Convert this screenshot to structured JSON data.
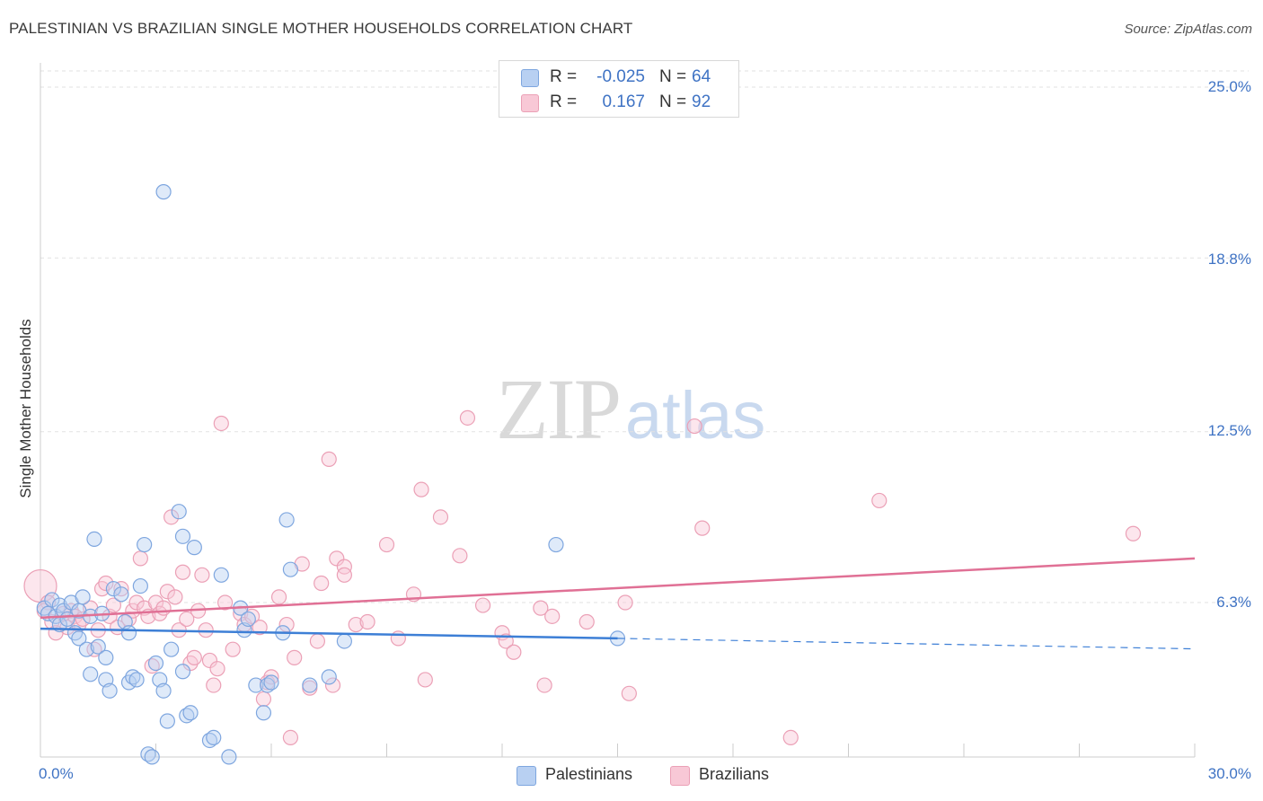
{
  "chart_data": {
    "type": "scatter",
    "title": "PALESTINIAN VS BRAZILIAN SINGLE MOTHER HOUSEHOLDS CORRELATION CHART",
    "source": "Source: ZipAtlas.com",
    "xlabel": "",
    "ylabel": "Single Mother Households",
    "xlim": [
      0,
      30
    ],
    "ylim": [
      0,
      26
    ],
    "x_tick_labels": [
      "0.0%",
      "30.0%"
    ],
    "y_ticks": [
      {
        "value": 25.0,
        "label": "25.0%"
      },
      {
        "value": 18.8,
        "label": "18.8%"
      },
      {
        "value": 12.5,
        "label": "12.5%"
      },
      {
        "value": 6.3,
        "label": "6.3%"
      }
    ],
    "watermark": {
      "zip": "ZIP",
      "atlas": "atlas"
    },
    "legend": [
      {
        "r_label": "R =",
        "r_value": "-0.025",
        "n_label": "N =",
        "n_value": "64"
      },
      {
        "r_label": "R =",
        "r_value": "0.167",
        "n_label": "N =",
        "n_value": "92"
      }
    ],
    "series": [
      {
        "name": "Palestinians",
        "color": "#7ea6df",
        "fill": "#b8d0f2",
        "line_color": "#3d7fd6",
        "trend": {
          "x0": 0,
          "y0": 5.35,
          "x1": 15,
          "y1": 5.0,
          "dash_x1": 30,
          "dash_y1": 4.62
        },
        "points": [
          [
            0.1,
            6.1
          ],
          [
            0.2,
            5.9
          ],
          [
            0.3,
            6.4
          ],
          [
            0.4,
            5.8
          ],
          [
            0.5,
            6.2
          ],
          [
            0.5,
            5.5
          ],
          [
            0.6,
            6.0
          ],
          [
            0.7,
            5.7
          ],
          [
            0.8,
            6.3
          ],
          [
            0.9,
            5.2
          ],
          [
            1.0,
            6.0
          ],
          [
            1.0,
            5.0
          ],
          [
            1.1,
            6.5
          ],
          [
            1.2,
            4.6
          ],
          [
            1.3,
            3.7
          ],
          [
            1.3,
            5.8
          ],
          [
            1.4,
            8.6
          ],
          [
            1.5,
            4.7
          ],
          [
            1.6,
            5.9
          ],
          [
            1.7,
            3.5
          ],
          [
            1.7,
            4.3
          ],
          [
            1.8,
            3.1
          ],
          [
            1.9,
            6.8
          ],
          [
            2.1,
            6.6
          ],
          [
            2.2,
            5.6
          ],
          [
            2.3,
            5.2
          ],
          [
            2.3,
            3.4
          ],
          [
            2.4,
            3.6
          ],
          [
            2.5,
            3.5
          ],
          [
            2.6,
            6.9
          ],
          [
            2.7,
            8.4
          ],
          [
            2.8,
            0.8
          ],
          [
            2.9,
            0.7
          ],
          [
            3.0,
            4.1
          ],
          [
            3.1,
            3.5
          ],
          [
            3.2,
            3.1
          ],
          [
            3.2,
            21.2
          ],
          [
            3.3,
            2.0
          ],
          [
            3.4,
            4.6
          ],
          [
            3.6,
            9.6
          ],
          [
            3.7,
            3.8
          ],
          [
            3.7,
            8.7
          ],
          [
            3.8,
            2.2
          ],
          [
            3.9,
            2.3
          ],
          [
            4.0,
            8.3
          ],
          [
            4.4,
            1.3
          ],
          [
            4.5,
            1.4
          ],
          [
            4.7,
            7.3
          ],
          [
            4.9,
            0.7
          ],
          [
            5.2,
            6.1
          ],
          [
            5.3,
            5.3
          ],
          [
            5.4,
            5.7
          ],
          [
            5.6,
            3.3
          ],
          [
            5.8,
            2.3
          ],
          [
            5.9,
            3.3
          ],
          [
            6.0,
            3.4
          ],
          [
            6.3,
            5.2
          ],
          [
            6.4,
            9.3
          ],
          [
            6.5,
            7.5
          ],
          [
            7.0,
            3.3
          ],
          [
            7.5,
            3.6
          ],
          [
            7.9,
            4.9
          ],
          [
            13.4,
            8.4
          ],
          [
            15.0,
            5.0
          ]
        ]
      },
      {
        "name": "Brazilians",
        "color": "#eba0b6",
        "fill": "#f8c8d6",
        "line_color": "#e07095",
        "trend": {
          "x0": 0,
          "y0": 5.75,
          "x1": 30,
          "y1": 7.9
        },
        "points": [
          [
            0.0,
            6.9
          ],
          [
            0.2,
            6.3
          ],
          [
            0.3,
            5.6
          ],
          [
            0.4,
            5.2
          ],
          [
            0.6,
            5.9
          ],
          [
            0.7,
            5.4
          ],
          [
            0.8,
            6.0
          ],
          [
            0.9,
            5.8
          ],
          [
            1.0,
            5.5
          ],
          [
            1.1,
            5.7
          ],
          [
            1.3,
            6.1
          ],
          [
            1.4,
            4.6
          ],
          [
            1.5,
            5.3
          ],
          [
            1.6,
            6.8
          ],
          [
            1.7,
            7.0
          ],
          [
            1.8,
            5.8
          ],
          [
            1.9,
            6.2
          ],
          [
            2.0,
            5.4
          ],
          [
            2.1,
            6.8
          ],
          [
            2.3,
            5.7
          ],
          [
            2.4,
            6.0
          ],
          [
            2.5,
            6.3
          ],
          [
            2.6,
            7.9
          ],
          [
            2.7,
            6.1
          ],
          [
            2.8,
            5.8
          ],
          [
            2.9,
            4.0
          ],
          [
            3.0,
            6.3
          ],
          [
            3.1,
            5.9
          ],
          [
            3.2,
            6.1
          ],
          [
            3.3,
            6.7
          ],
          [
            3.4,
            9.4
          ],
          [
            3.5,
            6.5
          ],
          [
            3.6,
            5.3
          ],
          [
            3.7,
            7.4
          ],
          [
            3.8,
            5.7
          ],
          [
            3.9,
            4.1
          ],
          [
            4.0,
            4.3
          ],
          [
            4.1,
            6.0
          ],
          [
            4.2,
            7.3
          ],
          [
            4.3,
            5.3
          ],
          [
            4.4,
            4.2
          ],
          [
            4.5,
            3.3
          ],
          [
            4.6,
            3.9
          ],
          [
            4.7,
            12.8
          ],
          [
            4.8,
            6.3
          ],
          [
            5.0,
            4.6
          ],
          [
            5.2,
            5.9
          ],
          [
            5.3,
            5.5
          ],
          [
            5.5,
            5.8
          ],
          [
            5.7,
            5.4
          ],
          [
            5.8,
            2.8
          ],
          [
            5.9,
            3.4
          ],
          [
            6.0,
            3.6
          ],
          [
            6.2,
            6.5
          ],
          [
            6.4,
            5.5
          ],
          [
            6.5,
            1.4
          ],
          [
            6.6,
            4.3
          ],
          [
            6.8,
            7.7
          ],
          [
            7.0,
            3.2
          ],
          [
            7.2,
            4.9
          ],
          [
            7.3,
            7.0
          ],
          [
            7.5,
            11.5
          ],
          [
            7.6,
            3.3
          ],
          [
            7.7,
            7.9
          ],
          [
            7.9,
            7.6
          ],
          [
            7.9,
            7.3
          ],
          [
            8.2,
            5.5
          ],
          [
            8.5,
            5.6
          ],
          [
            9.0,
            8.4
          ],
          [
            9.3,
            5.0
          ],
          [
            9.7,
            6.6
          ],
          [
            9.9,
            10.4
          ],
          [
            10.0,
            3.5
          ],
          [
            10.4,
            9.4
          ],
          [
            10.9,
            8.0
          ],
          [
            11.1,
            13.0
          ],
          [
            11.5,
            6.2
          ],
          [
            12.0,
            5.2
          ],
          [
            12.1,
            4.9
          ],
          [
            12.3,
            4.5
          ],
          [
            13.0,
            6.1
          ],
          [
            13.1,
            3.3
          ],
          [
            13.3,
            5.8
          ],
          [
            14.2,
            5.6
          ],
          [
            15.2,
            6.3
          ],
          [
            15.3,
            3.0
          ],
          [
            17.0,
            12.7
          ],
          [
            17.2,
            9.0
          ],
          [
            19.5,
            1.4
          ],
          [
            21.8,
            10.0
          ],
          [
            28.4,
            8.8
          ],
          [
            0.1,
            6.0
          ]
        ]
      }
    ]
  }
}
